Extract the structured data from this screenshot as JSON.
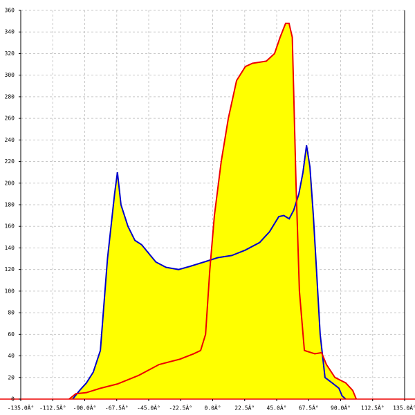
{
  "chart_data": {
    "type": "area-line",
    "series": [
      {
        "name": "blue",
        "color": "#0000cc",
        "x": [
          -98.5,
          -93.6,
          -88.8,
          -84,
          -79,
          -74,
          -69,
          -67,
          -64.5,
          -59.6,
          -54.7,
          -50,
          -45,
          -40,
          -32.8,
          -24,
          -15.8,
          -6,
          3.6,
          13.4,
          23,
          33,
          40,
          46.5,
          50,
          53.8,
          57,
          60.6,
          63.5,
          66,
          68.4,
          70.8,
          73,
          75.6,
          79,
          84,
          88.8,
          91,
          93.6
        ],
        "values": [
          0,
          8,
          15,
          25,
          45,
          130,
          190,
          210,
          180,
          160,
          147,
          143,
          135,
          127,
          122,
          120,
          123,
          127,
          131,
          133,
          138,
          145,
          155,
          169,
          170,
          167,
          175,
          190,
          210,
          235,
          215,
          170,
          120,
          60,
          20,
          15,
          10,
          3,
          0
        ]
      },
      {
        "name": "red",
        "color": "#ee0000",
        "x": [
          -101,
          -96.2,
          -88.8,
          -79,
          -67,
          -52,
          -37.7,
          -23,
          -13.3,
          -8.5,
          -5,
          -2,
          1.2,
          6,
          11,
          16.8,
          23,
          28,
          37.7,
          43.5,
          47.4,
          51.3,
          53.7,
          56,
          58.6,
          61,
          64.5,
          71.8,
          76.6,
          80,
          86,
          93.6,
          98.5,
          101
        ],
        "values": [
          0,
          5,
          6,
          10,
          14,
          22,
          32,
          37,
          42,
          45,
          60,
          120,
          170,
          220,
          260,
          295,
          308,
          311,
          313,
          320,
          335,
          348,
          348,
          335,
          200,
          100,
          45,
          42,
          43,
          32,
          20,
          15,
          8,
          0
        ]
      }
    ],
    "fill": "#ffff00",
    "xlim": [
      -135,
      135
    ],
    "xticks": [
      {
        "value": -135,
        "label": "-135.0Â°"
      },
      {
        "value": -112.5,
        "label": "-112.5Â°"
      },
      {
        "value": -90,
        "label": "-90.0Â°"
      },
      {
        "value": -67.5,
        "label": "-67.5Â°"
      },
      {
        "value": -45,
        "label": "-45.0Â°"
      },
      {
        "value": -22.5,
        "label": "-22.5Â°"
      },
      {
        "value": 0,
        "label": "0.0Â°"
      },
      {
        "value": 22.5,
        "label": "22.5Â°"
      },
      {
        "value": 45,
        "label": "45.0Â°"
      },
      {
        "value": 67.5,
        "label": "67.5Â°"
      },
      {
        "value": 90,
        "label": "90.0Â°"
      },
      {
        "value": 112.5,
        "label": "112.5Â°"
      },
      {
        "value": 135,
        "label": "135.0Â°"
      }
    ],
    "ylim": [
      0,
      360
    ],
    "yticks": [
      0,
      20,
      40,
      60,
      80,
      100,
      120,
      140,
      160,
      180,
      200,
      220,
      240,
      260,
      280,
      300,
      320,
      340,
      360
    ],
    "grid": true
  }
}
